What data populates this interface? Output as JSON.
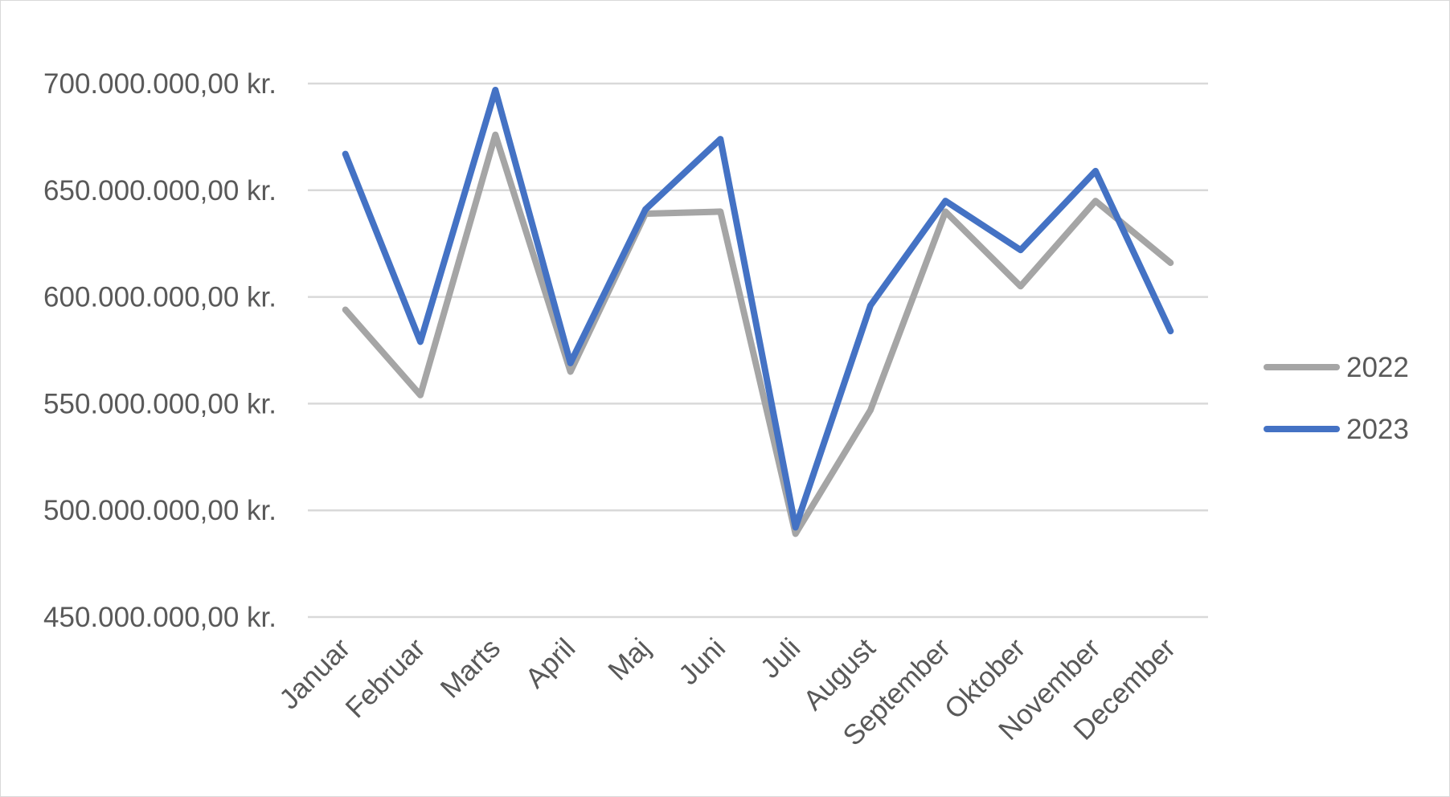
{
  "chart_data": {
    "type": "line",
    "title": "",
    "xlabel": "",
    "ylabel": "",
    "categories": [
      "Januar",
      "Februar",
      "Marts",
      "April",
      "Maj",
      "Juni",
      "Juli",
      "August",
      "September",
      "Oktober",
      "November",
      "December"
    ],
    "series": [
      {
        "name": "2022",
        "color": "#a5a5a5",
        "values": [
          594000000,
          554000000,
          676000000,
          565000000,
          639000000,
          640000000,
          489000000,
          547000000,
          640000000,
          605000000,
          645000000,
          616000000
        ]
      },
      {
        "name": "2023",
        "color": "#4472c4",
        "values": [
          667000000,
          579000000,
          697000000,
          569000000,
          641000000,
          674000000,
          492000000,
          596000000,
          645000000,
          622000000,
          659000000,
          584000000
        ]
      }
    ],
    "ylim": [
      450000000,
      700000000
    ],
    "yticks": [
      700000000,
      650000000,
      600000000,
      550000000,
      500000000,
      450000000
    ],
    "ytick_labels": [
      "700.000.000,00 kr.",
      "650.000.000,00 kr.",
      "600.000.000,00 kr.",
      "550.000.000,00 kr.",
      "500.000.000,00 kr.",
      "450.000.000,00 kr."
    ],
    "grid": true,
    "legend": "right"
  }
}
